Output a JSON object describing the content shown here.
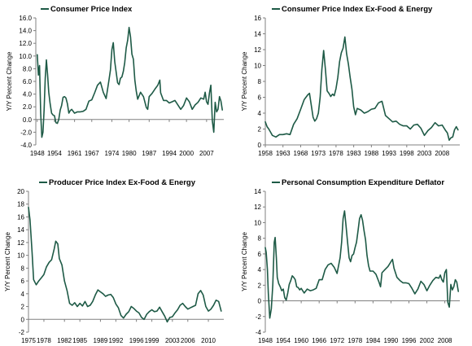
{
  "series_color": "#1e5a46",
  "chart_data": [
    {
      "type": "line",
      "title": "Consumer Price Index",
      "ylabel": "Y/Y Percent Change",
      "xlabel": "",
      "xlim": [
        1947.5,
        2013
      ],
      "ylim": [
        -4.0,
        16.0
      ],
      "yticks": [
        -4.0,
        -2.0,
        0.0,
        2.0,
        4.0,
        6.0,
        8.0,
        10.0,
        12.0,
        14.0,
        16.0
      ],
      "ytick_labels": [
        "-4.0",
        "-2.0",
        "0.0",
        "2.0",
        "4.0",
        "6.0",
        "8.0",
        "10.0",
        "12.0",
        "14.0",
        "16.0"
      ],
      "xtick_labels": [
        "1948",
        "1954",
        "1961",
        "1967",
        "1974",
        "1980",
        "1987",
        "1994",
        "2000",
        "2007"
      ],
      "xticks": [
        1948,
        1954,
        1961,
        1967,
        1974,
        1980,
        1987,
        1994,
        2000,
        2007
      ],
      "grid": false,
      "legend": "top-center",
      "series": [
        {
          "name": "Consumer Price Index",
          "x": [
            1948,
            1948.4,
            1948.8,
            1949.2,
            1949.6,
            1950,
            1950.4,
            1950.8,
            1951.2,
            1951.6,
            1952,
            1952.5,
            1953,
            1953.5,
            1954,
            1954.5,
            1955,
            1955.5,
            1956,
            1956.5,
            1957,
            1957.5,
            1958,
            1958.5,
            1959,
            1959.5,
            1960,
            1961,
            1962,
            1963,
            1964,
            1965,
            1966,
            1967,
            1968,
            1969,
            1970,
            1971,
            1972,
            1973,
            1973.5,
            1974,
            1974.5,
            1975,
            1975.5,
            1976,
            1976.5,
            1977,
            1977.5,
            1978,
            1978.5,
            1979,
            1979.5,
            1980,
            1980.5,
            1981,
            1981.5,
            1982,
            1982.5,
            1983,
            1984,
            1985,
            1986,
            1986.5,
            1987,
            1988,
            1989,
            1990,
            1990.7,
            1991,
            1992,
            1993,
            1994,
            1995,
            1996,
            1997,
            1998,
            1999,
            2000,
            2001,
            2002,
            2003,
            2004,
            2005,
            2006,
            2006.5,
            2007,
            2007.5,
            2008,
            2008.5,
            2009,
            2009.5,
            2010,
            2010.5,
            2011,
            2011.5,
            2012,
            2012.5
          ],
          "values": [
            10.2,
            7.0,
            8.5,
            1.0,
            -2.8,
            -2.0,
            1.5,
            6.5,
            9.4,
            7.0,
            4.3,
            2.5,
            1.0,
            0.7,
            0.6,
            -0.5,
            -0.6,
            0.0,
            1.5,
            2.2,
            3.5,
            3.6,
            3.4,
            2.5,
            1.0,
            1.4,
            1.6,
            1.0,
            1.2,
            1.2,
            1.3,
            1.6,
            2.9,
            3.1,
            4.2,
            5.4,
            5.9,
            4.3,
            3.3,
            6.2,
            7.8,
            11.0,
            12.1,
            9.1,
            7.5,
            5.8,
            5.5,
            6.5,
            6.7,
            7.6,
            9.0,
            11.3,
            12.5,
            14.5,
            13.0,
            10.3,
            9.5,
            6.2,
            4.5,
            3.2,
            4.3,
            3.6,
            1.9,
            1.6,
            3.6,
            4.1,
            4.8,
            5.4,
            6.2,
            4.2,
            3.0,
            3.0,
            2.6,
            2.8,
            3.0,
            2.3,
            1.6,
            2.2,
            3.4,
            2.8,
            1.6,
            2.3,
            2.7,
            3.4,
            3.2,
            4.3,
            2.8,
            2.4,
            4.2,
            5.4,
            -0.2,
            -2.0,
            2.7,
            1.2,
            1.6,
            3.6,
            2.9,
            1.5
          ]
        }
      ]
    },
    {
      "type": "line",
      "title": "Consumer Price Index Ex-Food & Energy",
      "ylabel": "Y/Y Percent Change",
      "xlabel": "",
      "xlim": [
        1958,
        2013
      ],
      "ylim": [
        0,
        16
      ],
      "yticks": [
        0,
        2,
        4,
        6,
        8,
        10,
        12,
        14,
        16
      ],
      "ytick_labels": [
        "0",
        "2",
        "4",
        "6",
        "8",
        "10",
        "12",
        "14",
        "16"
      ],
      "xtick_labels": [
        "1958",
        "1963",
        "1968",
        "1973",
        "1978",
        "1983",
        "1988",
        "1993",
        "1998",
        "2003",
        "2008"
      ],
      "xticks": [
        1958,
        1963,
        1968,
        1973,
        1978,
        1983,
        1988,
        1993,
        1998,
        2003,
        2008
      ],
      "grid": false,
      "legend": "top-center",
      "series": [
        {
          "name": "Consumer Price Index Ex-Food & Energy",
          "x": [
            1958,
            1958.5,
            1959,
            1959.5,
            1960,
            1961,
            1962,
            1963,
            1964,
            1965,
            1966,
            1967,
            1968,
            1969,
            1970,
            1970.5,
            1971,
            1971.5,
            1972,
            1972.5,
            1973,
            1973.5,
            1974,
            1974.5,
            1975,
            1975.5,
            1976,
            1976.5,
            1977,
            1977.5,
            1978,
            1978.5,
            1979,
            1979.5,
            1980,
            1980.5,
            1981,
            1981.5,
            1982,
            1982.5,
            1983,
            1983.5,
            1984,
            1985,
            1986,
            1987,
            1988,
            1989,
            1990,
            1991,
            1992,
            1993,
            1994,
            1995,
            1996,
            1997,
            1998,
            1999,
            2000,
            2001,
            2002,
            2003,
            2004,
            2005,
            2006,
            2007,
            2008,
            2009,
            2009.5,
            2010,
            2010.5,
            2011,
            2011.5,
            2012,
            2012.5
          ],
          "values": [
            2.9,
            2.3,
            2.0,
            1.6,
            1.2,
            1.0,
            1.3,
            1.3,
            1.4,
            1.3,
            2.6,
            3.3,
            4.5,
            5.7,
            6.3,
            6.5,
            5.0,
            3.5,
            3.0,
            3.3,
            4.0,
            6.0,
            9.5,
            11.9,
            9.5,
            6.8,
            6.5,
            6.1,
            6.4,
            6.2,
            7.1,
            8.5,
            10.5,
            11.6,
            12.2,
            13.6,
            11.5,
            10.2,
            8.5,
            7.0,
            4.8,
            3.8,
            4.6,
            4.4,
            4.0,
            4.2,
            4.5,
            4.6,
            5.3,
            5.5,
            3.7,
            3.3,
            2.9,
            3.0,
            2.6,
            2.4,
            2.4,
            2.0,
            2.5,
            2.6,
            2.1,
            1.2,
            1.8,
            2.2,
            2.8,
            2.4,
            2.5,
            1.8,
            1.5,
            0.6,
            0.9,
            1.0,
            1.9,
            2.3,
            1.9
          ]
        }
      ]
    },
    {
      "type": "line",
      "title": "Producer Price Index Ex-Food & Energy",
      "ylabel": "Y/Y Percent Change",
      "xlabel": "",
      "xlim": [
        1975,
        2013
      ],
      "ylim": [
        -2,
        20
      ],
      "yticks": [
        -2,
        0,
        2,
        4,
        6,
        8,
        10,
        12,
        14,
        16,
        18,
        20
      ],
      "ytick_labels": [
        "-2",
        "0",
        "2",
        "4",
        "6",
        "8",
        "10",
        "12",
        "14",
        "16",
        "18",
        "20"
      ],
      "xtick_labels": [
        "1975",
        "1978",
        "1982",
        "1985",
        "1989",
        "1992",
        "1996",
        "1999",
        "2003",
        "2006",
        "2010"
      ],
      "xticks": [
        1975,
        1978,
        1982,
        1985,
        1989,
        1992,
        1996,
        1999,
        2003,
        2006,
        2010
      ],
      "grid": false,
      "legend": "top-center",
      "series": [
        {
          "name": "Producer Price Index Ex-Food & Energy",
          "x": [
            1975,
            1975.3,
            1975.7,
            1976,
            1976.5,
            1977,
            1977.5,
            1978,
            1978.5,
            1979,
            1979.5,
            1980,
            1980.3,
            1980.7,
            1981,
            1981.5,
            1982,
            1982.5,
            1983,
            1983.5,
            1984,
            1984.5,
            1985,
            1985.5,
            1986,
            1986.5,
            1987,
            1987.5,
            1988,
            1988.5,
            1989,
            1989.5,
            1990,
            1990.5,
            1991,
            1991.5,
            1992,
            1992.5,
            1993,
            1993.5,
            1994,
            1994.5,
            1995,
            1995.5,
            1996,
            1996.5,
            1997,
            1997.5,
            1998,
            1998.5,
            1999,
            1999.5,
            2000,
            2000.5,
            2001,
            2001.5,
            2002,
            2002.5,
            2003,
            2003.5,
            2004,
            2004.5,
            2005,
            2005.5,
            2006,
            2006.5,
            2007,
            2007.5,
            2008,
            2008.5,
            2009,
            2009.5,
            2010,
            2010.5,
            2011,
            2011.5,
            2012,
            2012.5
          ],
          "values": [
            17.5,
            15.5,
            10.5,
            6.2,
            5.4,
            6.0,
            6.5,
            7.0,
            8.2,
            8.9,
            9.3,
            11.0,
            12.2,
            11.8,
            9.5,
            8.5,
            6.0,
            4.5,
            2.5,
            2.2,
            2.6,
            2.0,
            2.5,
            2.1,
            2.8,
            2.0,
            2.2,
            2.8,
            3.8,
            4.6,
            4.3,
            4.0,
            3.6,
            3.8,
            3.9,
            3.4,
            2.4,
            1.8,
            0.6,
            0.2,
            0.8,
            1.2,
            2.0,
            1.7,
            1.3,
            1.0,
            0.3,
            0.0,
            0.8,
            1.2,
            1.5,
            1.2,
            1.3,
            1.9,
            1.2,
            0.5,
            -0.4,
            0.3,
            0.4,
            1.0,
            1.5,
            2.2,
            2.5,
            2.0,
            1.6,
            1.8,
            2.0,
            2.2,
            4.0,
            4.5,
            3.8,
            2.0,
            1.3,
            1.6,
            2.2,
            3.0,
            2.8,
            1.3
          ]
        }
      ]
    },
    {
      "type": "line",
      "title": "Personal Consumption Expenditure Deflator",
      "ylabel": "Y/Y Percent Change",
      "xlabel": "",
      "xlim": [
        1948,
        2013
      ],
      "ylim": [
        -4,
        14
      ],
      "yticks": [
        -4,
        -2,
        0,
        2,
        4,
        6,
        8,
        10,
        12,
        14
      ],
      "ytick_labels": [
        "-4",
        "-2",
        "0",
        "2",
        "4",
        "6",
        "8",
        "10",
        "12",
        "14"
      ],
      "xtick_labels": [
        "1948",
        "1954",
        "1960",
        "1966",
        "1972",
        "1978",
        "1984",
        "1990",
        "1996",
        "2002",
        "2008"
      ],
      "xticks": [
        1948,
        1954,
        1960,
        1966,
        1972,
        1978,
        1984,
        1990,
        1996,
        2002,
        2008
      ],
      "grid": false,
      "legend": "top-center",
      "series": [
        {
          "name": "Personal Consumption Expenditure Deflator",
          "x": [
            1948,
            1948.3,
            1948.7,
            1949,
            1949.5,
            1950,
            1950.5,
            1951,
            1951.3,
            1951.7,
            1952,
            1952.5,
            1953,
            1953.5,
            1954,
            1954.5,
            1955,
            1955.5,
            1956,
            1956.5,
            1957,
            1957.5,
            1958,
            1958.5,
            1959,
            1959.5,
            1960,
            1961,
            1962,
            1963,
            1964,
            1965,
            1966,
            1967,
            1968,
            1969,
            1970,
            1971,
            1972,
            1973,
            1973.5,
            1974,
            1974.5,
            1975,
            1975.5,
            1976,
            1976.5,
            1977,
            1977.5,
            1978,
            1978.5,
            1979,
            1979.5,
            1980,
            1980.5,
            1981,
            1981.5,
            1982,
            1982.5,
            1983,
            1984,
            1985,
            1986,
            1986.5,
            1987,
            1988,
            1989,
            1990,
            1990.5,
            1991,
            1992,
            1993,
            1994,
            1995,
            1996,
            1997,
            1998,
            1999,
            2000,
            2001,
            2002,
            2003,
            2004,
            2005,
            2006,
            2006.5,
            2007,
            2007.5,
            2008,
            2008.5,
            2009,
            2009.5,
            2010,
            2010.5,
            2011,
            2011.5,
            2012,
            2012.5
          ],
          "values": [
            6.8,
            6.2,
            4.0,
            1.0,
            -2.2,
            -1.0,
            2.0,
            7.5,
            8.1,
            5.5,
            3.0,
            2.2,
            1.8,
            1.3,
            1.5,
            0.4,
            0.1,
            1.0,
            2.1,
            2.6,
            3.2,
            3.0,
            2.7,
            1.8,
            1.7,
            1.4,
            1.6,
            1.0,
            1.5,
            1.3,
            1.4,
            1.6,
            2.7,
            2.7,
            4.0,
            4.6,
            4.8,
            4.3,
            3.5,
            5.5,
            7.5,
            10.5,
            11.5,
            9.5,
            7.5,
            5.5,
            5.0,
            5.8,
            6.0,
            6.8,
            7.5,
            9.0,
            10.5,
            11.0,
            10.3,
            9.0,
            7.8,
            5.8,
            4.5,
            3.8,
            3.8,
            3.4,
            2.4,
            1.8,
            3.6,
            4.0,
            4.4,
            5.0,
            5.3,
            4.2,
            3.0,
            2.6,
            2.3,
            2.3,
            2.2,
            1.6,
            0.9,
            1.5,
            2.5,
            2.1,
            1.3,
            2.0,
            2.6,
            3.0,
            2.9,
            3.3,
            2.7,
            2.4,
            3.6,
            4.0,
            -0.2,
            -0.8,
            2.1,
            1.4,
            1.8,
            2.7,
            2.4,
            1.2
          ]
        }
      ]
    }
  ]
}
